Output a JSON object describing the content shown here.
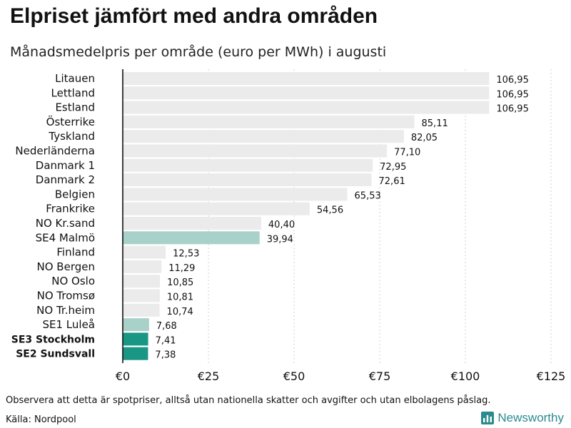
{
  "header": {
    "title": "Elpriset jämfört med andra områden",
    "subtitle": "Månadsmedelpris per område (euro per MWh) i augusti"
  },
  "footer": {
    "note": "Observera att detta är spotpriser, alltså utan nationella skatter och avgifter och utan elbolagens påslag.",
    "source": "Källa: Nordpool",
    "brand": "Newsworthy"
  },
  "colors": {
    "default_bar": "#ebebeb",
    "light_highlight": "#a8d1c9",
    "dark_highlight": "#1a9685",
    "brand": "#2b8a8f"
  },
  "chart_data": {
    "type": "bar",
    "orientation": "horizontal",
    "title": "Elpriset jämfört med andra områden",
    "subtitle": "Månadsmedelpris per område (euro per MWh) i augusti",
    "xlim": [
      0,
      125
    ],
    "x_ticks": [
      0,
      25,
      50,
      75,
      100,
      125
    ],
    "x_tick_labels": [
      "€0",
      "€25",
      "€50",
      "€75",
      "€100",
      "€125"
    ],
    "grid": true,
    "categories": [
      "Litauen",
      "Lettland",
      "Estland",
      "Österrike",
      "Tyskland",
      "Nederländerna",
      "Danmark  1",
      "Danmark  2",
      "Belgien",
      "Frankrike",
      "NO Kr.sand",
      "SE4  Malmö",
      "Finland",
      "NO Bergen",
      "NO Oslo",
      "NO Tromsø",
      "NO Tr.heim",
      "SE1   Luleå",
      "SE3 Stockholm",
      "SE2 Sundsvall"
    ],
    "values": [
      106.95,
      106.95,
      106.95,
      85.11,
      82.05,
      77.1,
      72.95,
      72.61,
      65.53,
      54.56,
      40.4,
      39.94,
      12.53,
      11.29,
      10.85,
      10.81,
      10.74,
      7.68,
      7.41,
      7.38
    ],
    "value_labels": [
      "106,95",
      "106,95",
      "106,95",
      "85,11",
      "82,05",
      "77,10",
      "72,95",
      "72,61",
      "65,53",
      "54,56",
      "40,40",
      "39,94",
      "12,53",
      "11,29",
      "10,85",
      "10,81",
      "10,74",
      "7,68",
      "7,41",
      "7,38"
    ],
    "highlight": [
      "none",
      "none",
      "none",
      "none",
      "none",
      "none",
      "none",
      "none",
      "none",
      "none",
      "none",
      "light",
      "none",
      "none",
      "none",
      "none",
      "none",
      "light",
      "dark",
      "dark"
    ],
    "bold_labels": [
      "SE3 Stockholm",
      "SE2 Sundsvall"
    ]
  }
}
